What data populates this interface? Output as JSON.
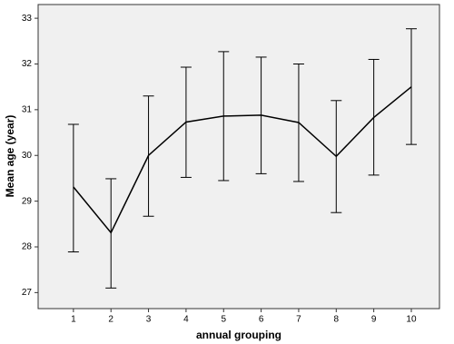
{
  "chart_data": {
    "type": "errorline",
    "x_label": "annual grouping",
    "y_label": "Mean age (year)",
    "x": [
      1,
      2,
      3,
      4,
      5,
      6,
      7,
      8,
      9,
      10
    ],
    "values": [
      29.31,
      28.31,
      30.0,
      30.73,
      30.86,
      30.88,
      30.72,
      29.98,
      30.83,
      31.5
    ],
    "lower": [
      27.89,
      27.1,
      28.67,
      29.52,
      29.45,
      29.6,
      29.43,
      28.75,
      29.57,
      30.24
    ],
    "upper": [
      30.68,
      29.49,
      31.3,
      31.93,
      32.27,
      32.15,
      32.0,
      31.2,
      32.1,
      32.77
    ],
    "color": "#000000",
    "xlim": [
      0.06,
      10.75
    ],
    "xticks": [
      1,
      2,
      3,
      4,
      5,
      6,
      7,
      8,
      9,
      10
    ],
    "ylim": [
      26.65,
      33.3
    ],
    "yticks": [
      27,
      28,
      29,
      30,
      31,
      32,
      33
    ]
  }
}
